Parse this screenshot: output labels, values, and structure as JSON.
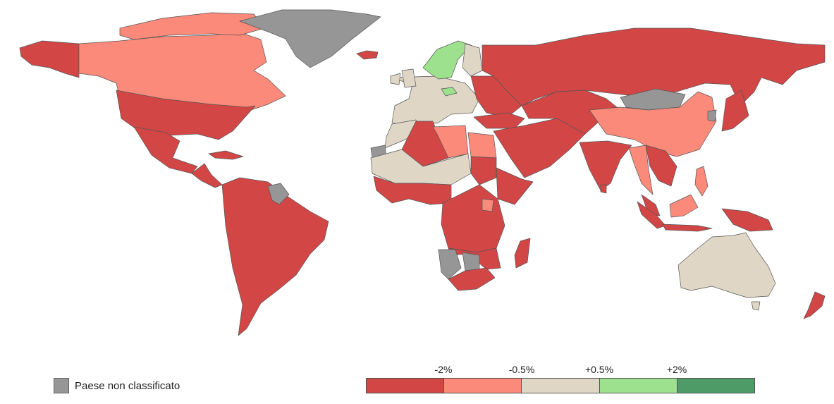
{
  "colors": {
    "strong_negative": "#d24646",
    "negative": "#fb8a7a",
    "neutral": "#dfd6c6",
    "positive": "#9de18f",
    "strong_positive": "#4e9b68",
    "unclassified": "#969696"
  },
  "legend": {
    "unclassified_label": "Paese non classificato",
    "scale_ticks": [
      "-2%",
      "-0.5%",
      "+0.5%",
      "+2%"
    ],
    "scale_bins": [
      "strong_negative",
      "negative",
      "neutral",
      "positive",
      "strong_positive"
    ]
  },
  "map": {
    "regions": [
      {
        "name": "alaska",
        "category": "strong_negative"
      },
      {
        "name": "canada",
        "category": "negative"
      },
      {
        "name": "canadian-arctic-islands",
        "category": "negative"
      },
      {
        "name": "greenland",
        "category": "unclassified"
      },
      {
        "name": "iceland",
        "category": "strong_negative"
      },
      {
        "name": "usa",
        "category": "strong_negative"
      },
      {
        "name": "mexico",
        "category": "strong_negative"
      },
      {
        "name": "central-america",
        "category": "strong_negative"
      },
      {
        "name": "cuba",
        "category": "strong_negative"
      },
      {
        "name": "south-america",
        "category": "strong_negative"
      },
      {
        "name": "guyana-suriname",
        "category": "unclassified"
      },
      {
        "name": "western-europe",
        "category": "neutral"
      },
      {
        "name": "uk",
        "category": "neutral"
      },
      {
        "name": "ireland",
        "category": "neutral"
      },
      {
        "name": "scandinavia",
        "category": "positive"
      },
      {
        "name": "czechia",
        "category": "positive"
      },
      {
        "name": "finland",
        "category": "neutral"
      },
      {
        "name": "eastern-europe",
        "category": "strong_negative"
      },
      {
        "name": "russia",
        "category": "strong_negative"
      },
      {
        "name": "turkey",
        "category": "strong_negative"
      },
      {
        "name": "middle-east",
        "category": "strong_negative"
      },
      {
        "name": "central-asia",
        "category": "strong_negative"
      },
      {
        "name": "mongolia",
        "category": "unclassified"
      },
      {
        "name": "china",
        "category": "negative"
      },
      {
        "name": "korea",
        "category": "unclassified"
      },
      {
        "name": "japan",
        "category": "strong_negative"
      },
      {
        "name": "india",
        "category": "strong_negative"
      },
      {
        "name": "sri-lanka",
        "category": "strong_negative"
      },
      {
        "name": "myanmar-thailand",
        "category": "negative"
      },
      {
        "name": "indochina",
        "category": "strong_negative"
      },
      {
        "name": "philippines",
        "category": "negative"
      },
      {
        "name": "malaysia",
        "category": "strong_negative"
      },
      {
        "name": "borneo-malaysia",
        "category": "negative"
      },
      {
        "name": "sumatra",
        "category": "strong_negative"
      },
      {
        "name": "java",
        "category": "strong_negative"
      },
      {
        "name": "new-guinea",
        "category": "strong_negative"
      },
      {
        "name": "australia",
        "category": "neutral"
      },
      {
        "name": "tasmania",
        "category": "neutral"
      },
      {
        "name": "new-zealand",
        "category": "strong_negative"
      },
      {
        "name": "morocco",
        "category": "neutral"
      },
      {
        "name": "western-sahara",
        "category": "unclassified"
      },
      {
        "name": "algeria",
        "category": "strong_negative"
      },
      {
        "name": "libya",
        "category": "negative"
      },
      {
        "name": "egypt",
        "category": "negative"
      },
      {
        "name": "sahel",
        "category": "neutral"
      },
      {
        "name": "west-africa",
        "category": "strong_negative"
      },
      {
        "name": "sudan",
        "category": "strong_negative"
      },
      {
        "name": "horn-of-africa",
        "category": "strong_negative"
      },
      {
        "name": "central-africa",
        "category": "strong_negative"
      },
      {
        "name": "kenya",
        "category": "negative"
      },
      {
        "name": "angola-south",
        "category": "strong_negative"
      },
      {
        "name": "namibia",
        "category": "unclassified"
      },
      {
        "name": "botswana",
        "category": "unclassified"
      },
      {
        "name": "south-africa",
        "category": "strong_negative"
      },
      {
        "name": "madagascar",
        "category": "strong_negative"
      }
    ]
  }
}
